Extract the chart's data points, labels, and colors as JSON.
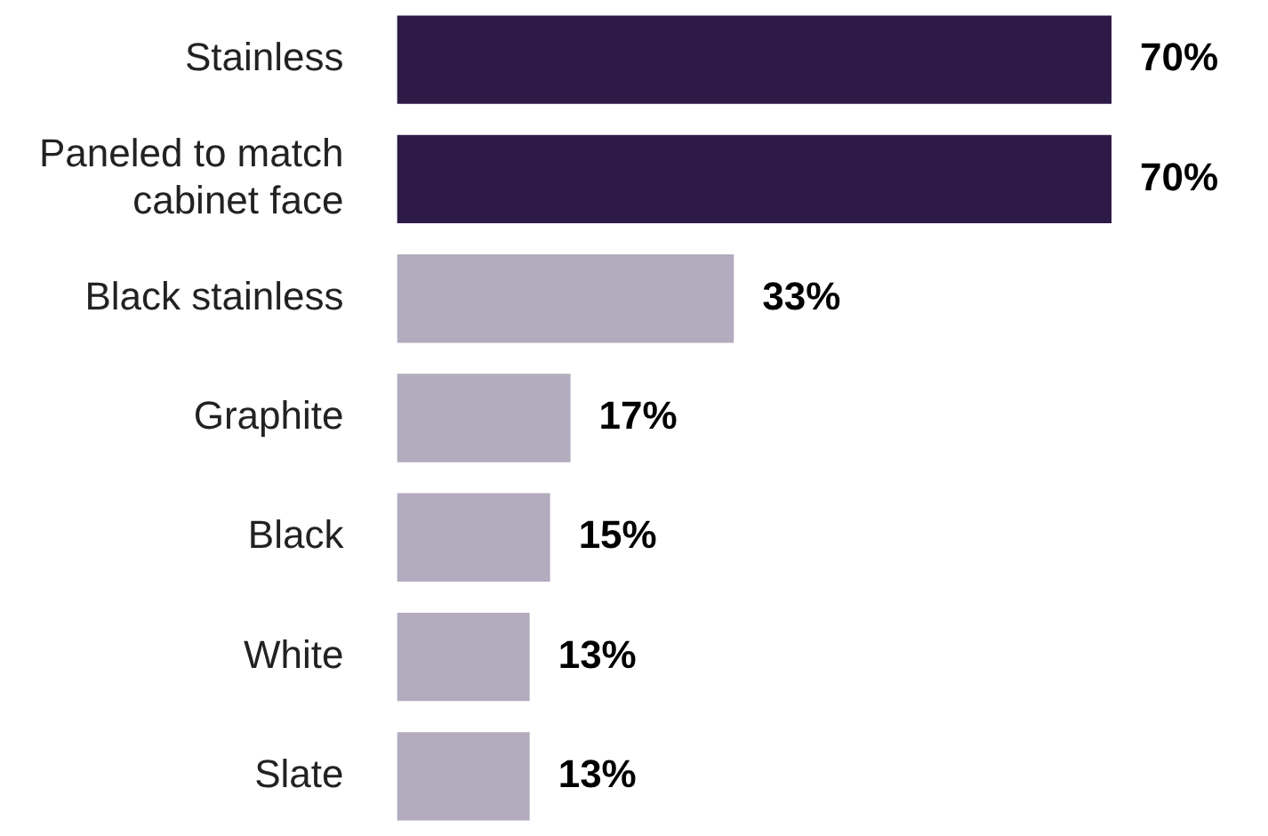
{
  "chart_data": {
    "type": "bar",
    "orientation": "horizontal",
    "categories": [
      "Stainless",
      "Paneled to match cabinet face",
      "Black stainless",
      "Graphite",
      "Black",
      "White",
      "Slate"
    ],
    "values": [
      70,
      70,
      33,
      17,
      15,
      13,
      13
    ],
    "colors": [
      "#2e1a47",
      "#2e1a47",
      "#b3abbe",
      "#b3abbe",
      "#b3abbe",
      "#b3abbe",
      "#b3abbe"
    ],
    "value_labels": [
      "70%",
      "70%",
      "33%",
      "17%",
      "15%",
      "13%",
      "13%"
    ],
    "tick_labels": "y"
  }
}
